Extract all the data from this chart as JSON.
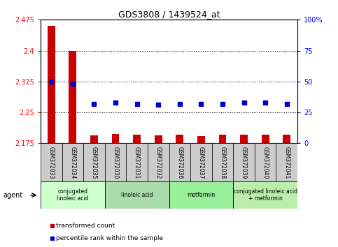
{
  "title": "GDS3808 / 1439524_at",
  "samples": [
    "GSM372033",
    "GSM372034",
    "GSM372035",
    "GSM372030",
    "GSM372031",
    "GSM372032",
    "GSM372036",
    "GSM372037",
    "GSM372038",
    "GSM372039",
    "GSM372040",
    "GSM372041"
  ],
  "bar_values": [
    2.46,
    2.4,
    2.195,
    2.197,
    2.196,
    2.195,
    2.196,
    2.193,
    2.196,
    2.196,
    2.196,
    2.196
  ],
  "dot_values": [
    50,
    48,
    32,
    33,
    32,
    31,
    32,
    32,
    32,
    33,
    33,
    32
  ],
  "bar_color": "#cc0000",
  "dot_color": "#0000cc",
  "ylim_left": [
    2.175,
    2.475
  ],
  "ylim_right": [
    0,
    100
  ],
  "yticks_left": [
    2.175,
    2.25,
    2.325,
    2.4,
    2.475
  ],
  "yticks_right": [
    0,
    25,
    50,
    75,
    100
  ],
  "ytick_labels_left": [
    "2.175",
    "2.25",
    "2.325",
    "2.4",
    "2.475"
  ],
  "ytick_labels_right": [
    "0",
    "25",
    "50",
    "75",
    "100%"
  ],
  "hlines": [
    2.25,
    2.325,
    2.4
  ],
  "groups": [
    {
      "label": "conjugated\nlinoleic acid",
      "start": 0,
      "end": 3,
      "color": "#ccffcc"
    },
    {
      "label": "linoleic acid",
      "start": 3,
      "end": 6,
      "color": "#aaddaa"
    },
    {
      "label": "metformin",
      "start": 6,
      "end": 9,
      "color": "#99ee99"
    },
    {
      "label": "conjugated linoleic acid\n+ metformin",
      "start": 9,
      "end": 12,
      "color": "#bbeeaa"
    }
  ],
  "legend_items": [
    {
      "label": "transformed count",
      "color": "#cc0000"
    },
    {
      "label": "percentile rank within the sample",
      "color": "#0000cc"
    }
  ],
  "bar_width": 0.35,
  "background_color": "#ffffff",
  "sample_bg_color": "#cccccc",
  "grid_color": "#000000"
}
